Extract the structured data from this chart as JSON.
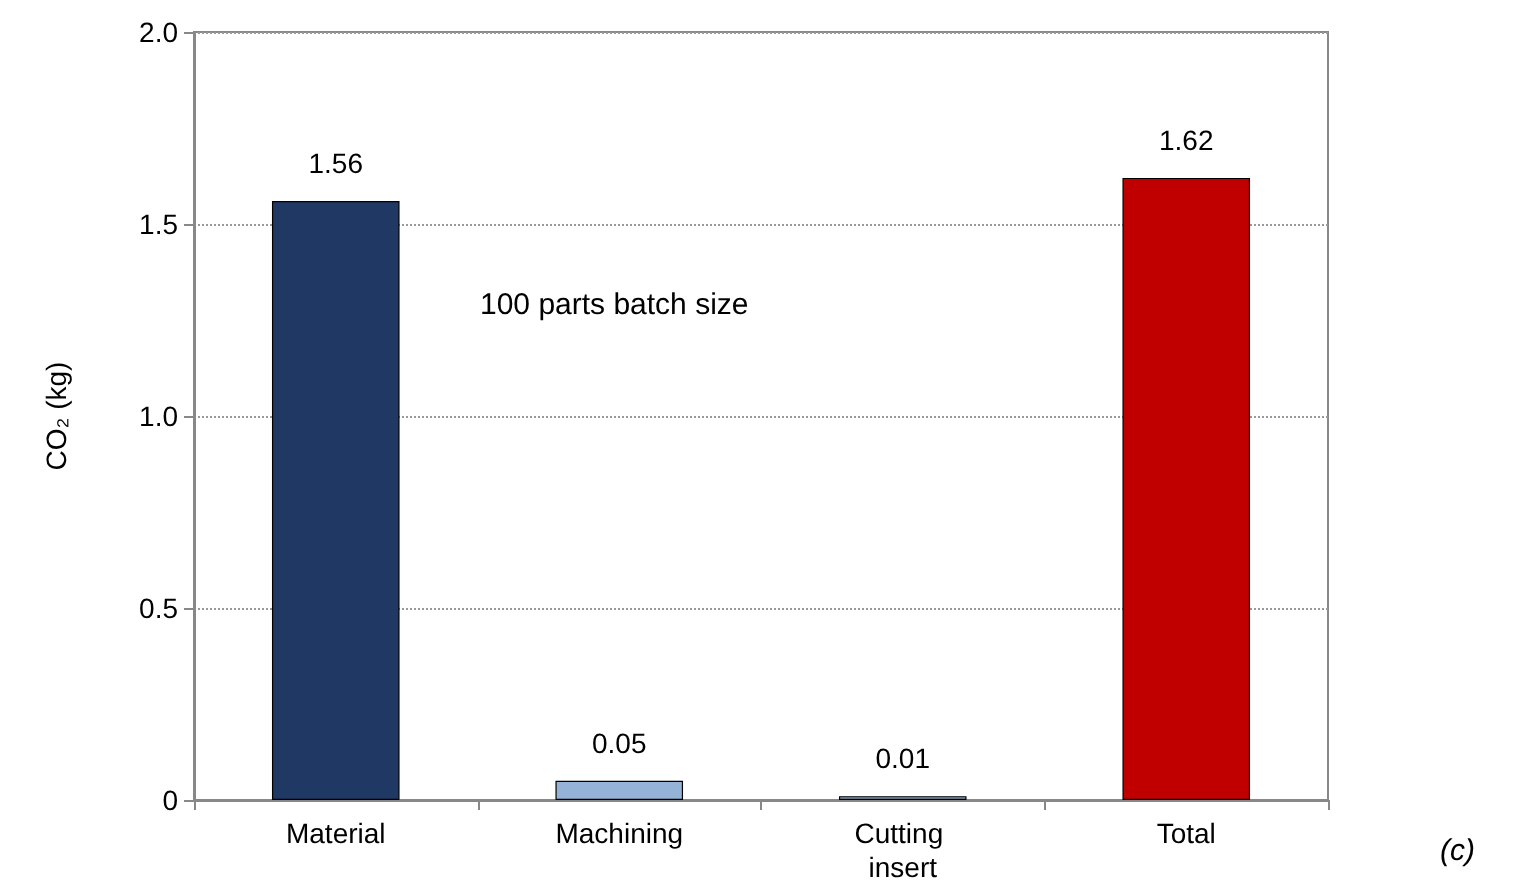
{
  "chart_data": {
    "type": "bar",
    "ylabel": "CO₂ (kg)",
    "categories": [
      "Material",
      "Machining",
      "Cutting insert",
      "Total"
    ],
    "values": [
      1.56,
      0.05,
      0.01,
      1.62
    ],
    "colors": [
      "#1f3864",
      "#95b3d7",
      "#8497b0",
      "#c00000"
    ],
    "ylim": [
      0,
      2
    ],
    "yticks": [
      0,
      {
        "value": 0.5,
        "label": "0.5"
      },
      {
        "value": 1,
        "label": "1.0"
      },
      {
        "value": 1.5,
        "label": "1.5"
      },
      {
        "value": 2,
        "label": "2.0"
      }
    ],
    "grid": "y",
    "data_labels": true,
    "annotations": [
      "100 parts batch size",
      "(c)"
    ]
  }
}
